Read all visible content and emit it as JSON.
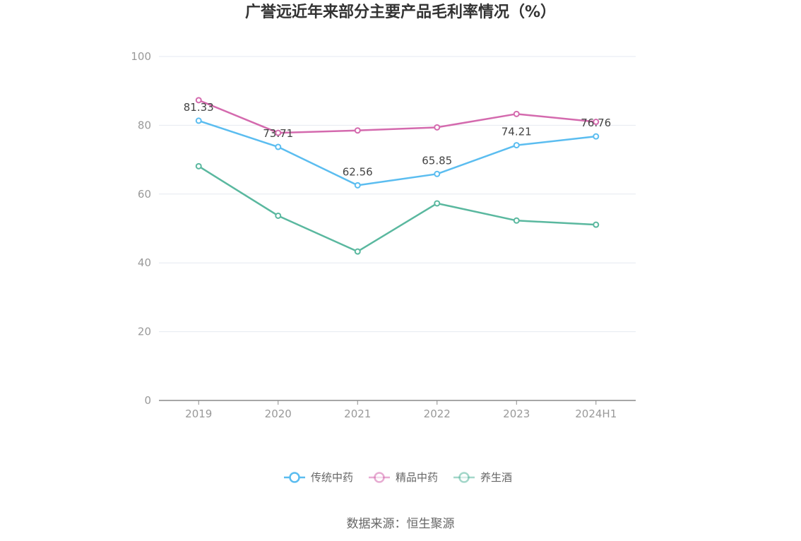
{
  "chart_data": {
    "type": "line",
    "title": "广誉远近年来部分主要产品毛利率情况（%）",
    "categories": [
      "2019",
      "2020",
      "2021",
      "2022",
      "2023",
      "2024H1"
    ],
    "ylim": [
      0,
      100
    ],
    "yticks": [
      "0",
      "20",
      "40",
      "60",
      "80",
      "100"
    ],
    "grid": true,
    "legend_placement": "bottom",
    "series": [
      {
        "name": "传统中药",
        "color": "#5bbdf0",
        "values": [
          81.33,
          73.71,
          62.56,
          65.85,
          74.21,
          76.76
        ],
        "labels": [
          "81.33",
          "73.71",
          "62.56",
          "65.85",
          "74.21",
          "76.76"
        ]
      },
      {
        "name": "精品中药",
        "color": "#d46aae",
        "values": [
          87.3,
          77.8,
          78.5,
          79.4,
          83.3,
          81.0
        ]
      },
      {
        "name": "养生酒",
        "color": "#5ab89f",
        "values": [
          68.1,
          53.7,
          43.3,
          57.3,
          52.3,
          51.1
        ]
      }
    ]
  },
  "source": "数据来源：恒生聚源"
}
